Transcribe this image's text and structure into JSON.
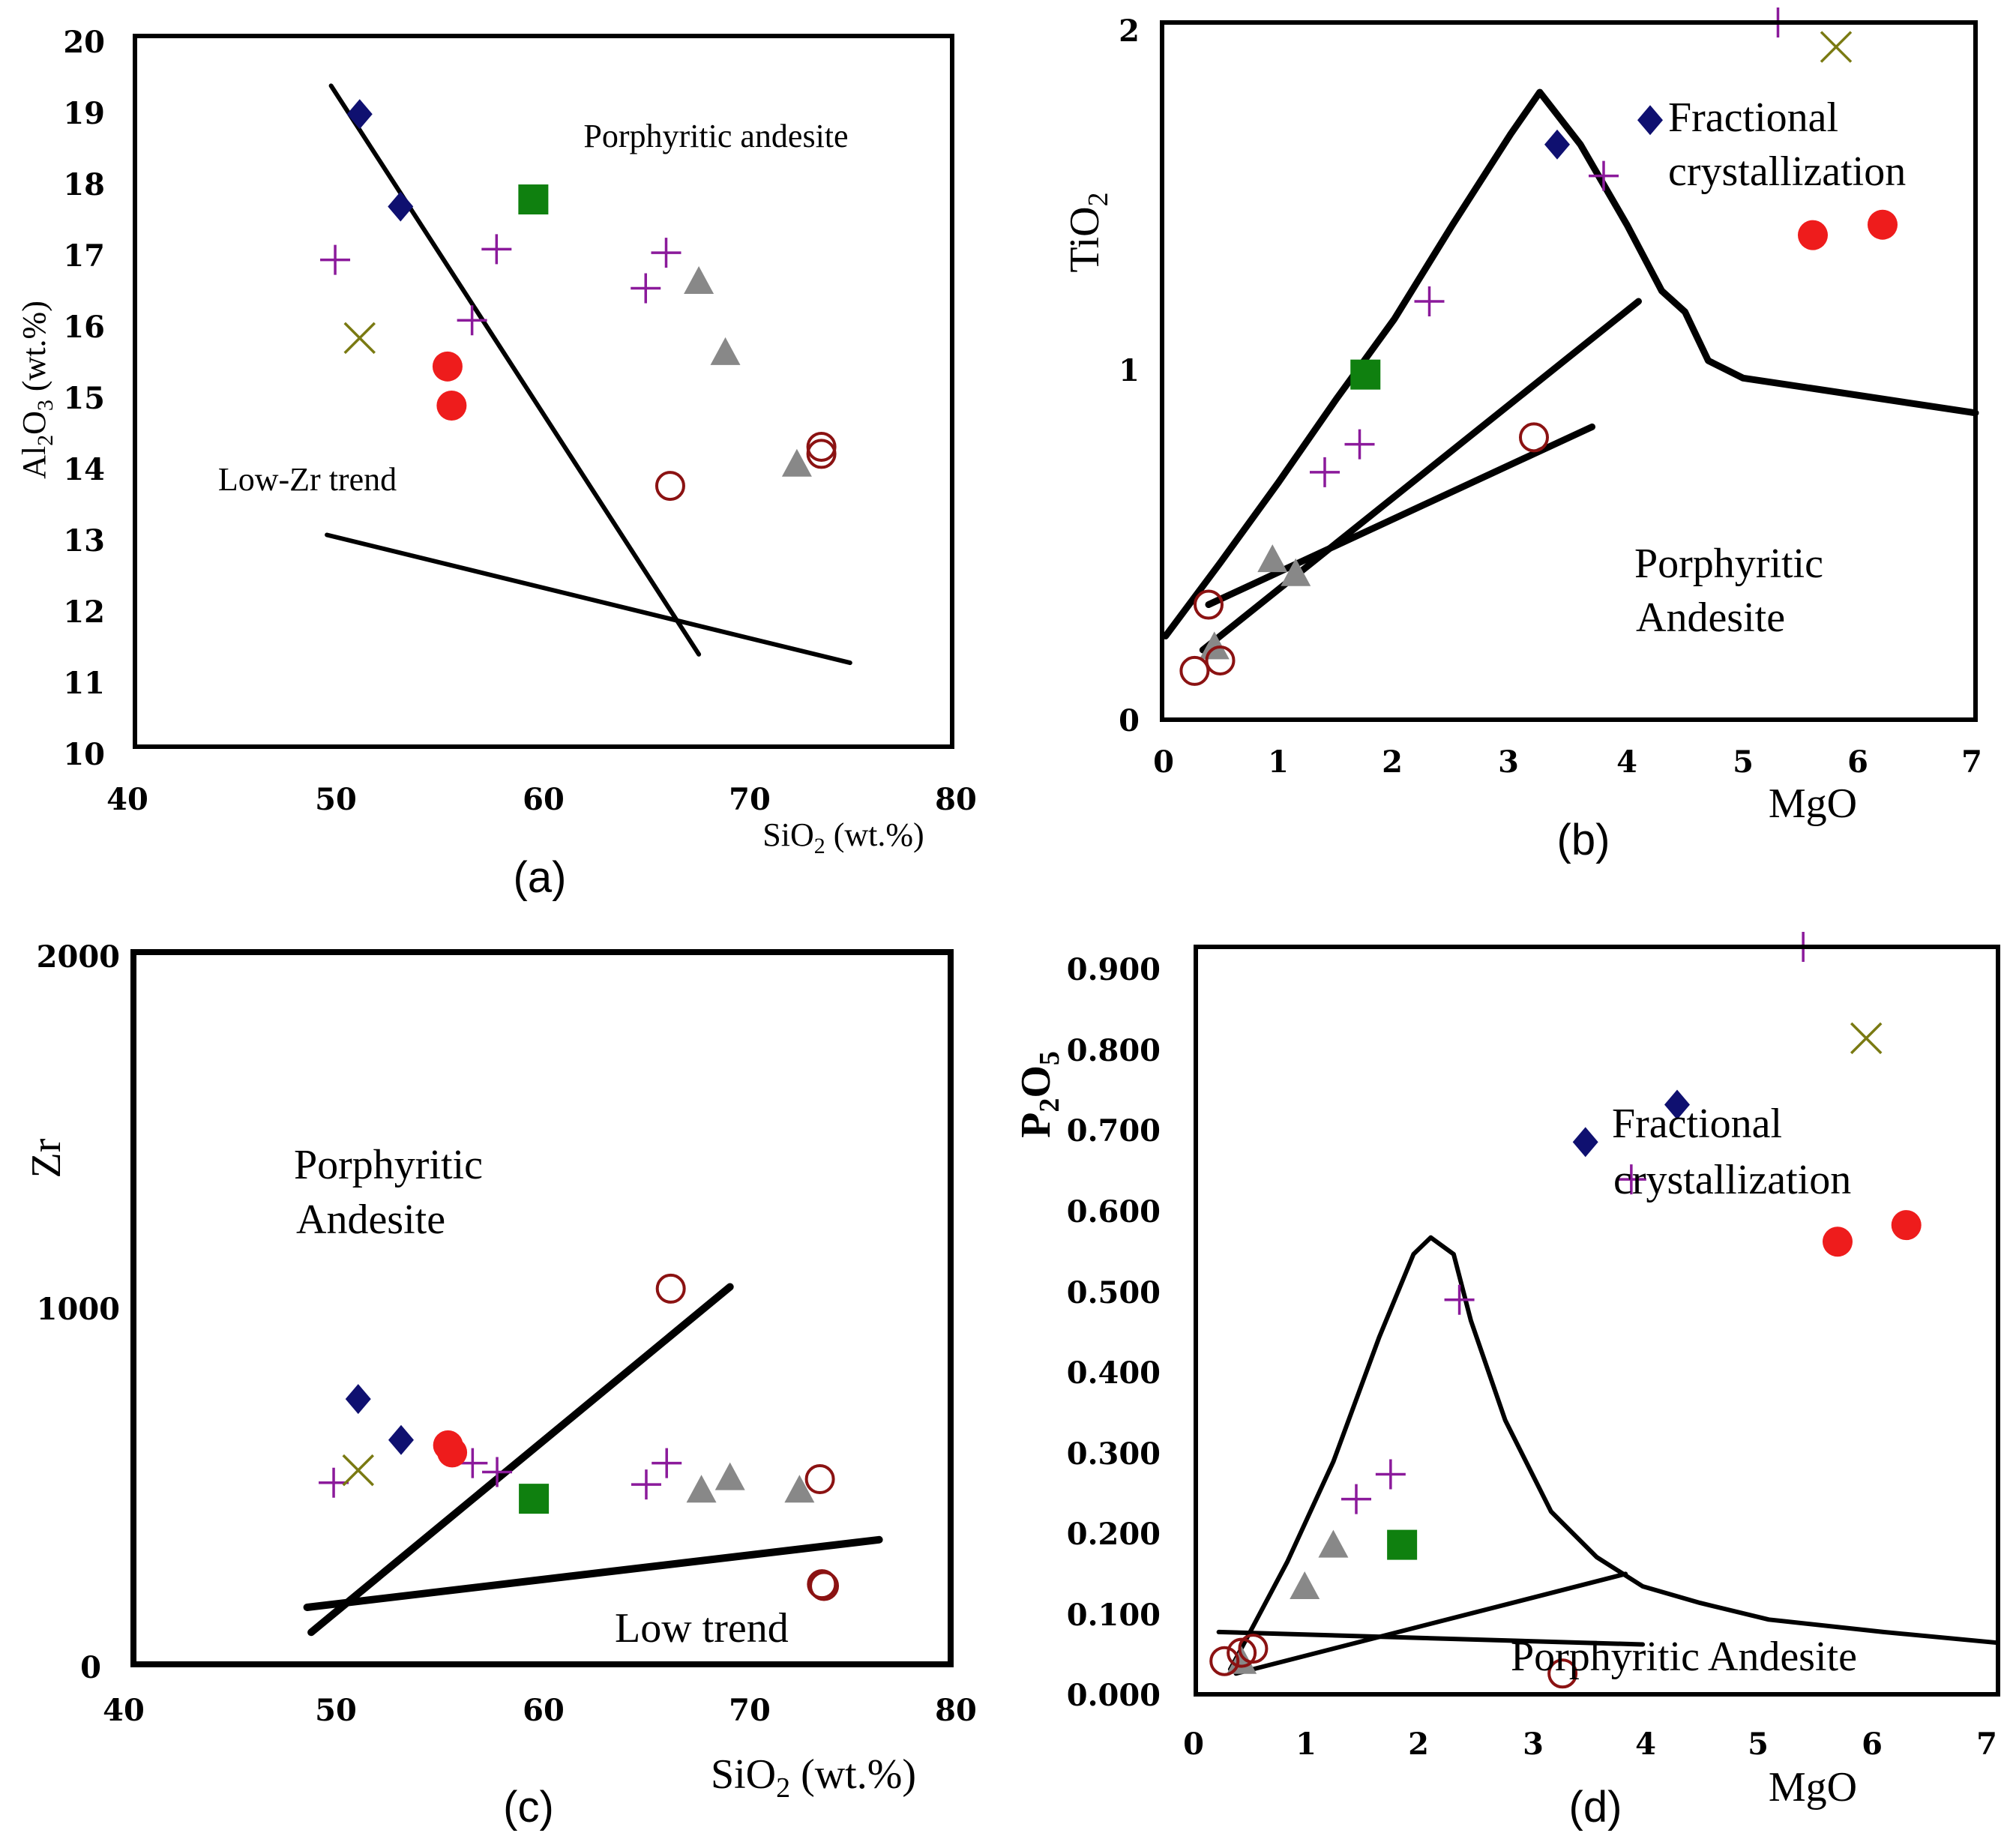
{
  "colors": {
    "diamond": "#0f1070",
    "plus": "#8b1a9b",
    "cross": "#7a7a12",
    "square": "#0f800f",
    "triangle": "#888888",
    "filled_circle": "#ee1c1c",
    "open_circle": "#8b1212"
  },
  "chart_data": [
    {
      "type": "scatter",
      "caption": "(a)",
      "ylabel": "Al2O3 (wt.%)",
      "xlabel": "SiO2 (wt.%)",
      "xlim": [
        40,
        80
      ],
      "ylim": [
        10,
        20
      ],
      "x_ticks": [
        "40",
        "50",
        "60",
        "70",
        "80"
      ],
      "y_ticks": [
        "10",
        "11",
        "12",
        "13",
        "14",
        "15",
        "16",
        "17",
        "18",
        "19",
        "20"
      ],
      "annotations": [
        "Porphyritic andesite",
        "Low-Zr trend"
      ],
      "lines": [
        {
          "points": [
            [
              49.6,
              19.3
            ],
            [
              67.6,
              11.3
            ]
          ]
        },
        {
          "points": [
            [
              49.4,
              12.98
            ],
            [
              75.0,
              11.18
            ]
          ]
        }
      ],
      "series": [
        {
          "marker": "diamond",
          "points": [
            [
              51.0,
              18.9
            ],
            [
              53.0,
              17.6
            ]
          ]
        },
        {
          "marker": "plus",
          "points": [
            [
              49.8,
              16.85
            ],
            [
              57.7,
              17.0
            ],
            [
              56.5,
              16.0
            ],
            [
              65.0,
              16.45
            ],
            [
              66.0,
              16.95
            ]
          ]
        },
        {
          "marker": "cross",
          "points": [
            [
              51.0,
              15.75
            ]
          ]
        },
        {
          "marker": "square",
          "points": [
            [
              59.5,
              17.7
            ]
          ]
        },
        {
          "marker": "filled_circle",
          "points": [
            [
              55.3,
              15.35
            ],
            [
              55.5,
              14.8
            ]
          ]
        },
        {
          "marker": "triangle",
          "points": [
            [
              67.6,
              16.55
            ],
            [
              68.9,
              15.55
            ],
            [
              72.4,
              13.98
            ]
          ]
        },
        {
          "marker": "open_circle",
          "points": [
            [
              66.2,
              13.67
            ],
            [
              73.6,
              14.22
            ],
            [
              73.6,
              14.12
            ]
          ]
        }
      ]
    },
    {
      "type": "scatter",
      "caption": "(b)",
      "ylabel": "TiO2",
      "xlabel": "MgO",
      "xlim": [
        0,
        7
      ],
      "ylim": [
        0,
        2
      ],
      "x_ticks": [
        "0",
        "1",
        "2",
        "3",
        "4",
        "5",
        "6",
        "7"
      ],
      "y_ticks": [
        "0",
        "1",
        "2"
      ],
      "annotations": [
        "Fractional",
        "crystallization",
        "Porphyritic",
        "Andesite"
      ],
      "lines": [
        {
          "points": [
            [
              0.03,
              0.24
            ],
            [
              0.5,
              0.45
            ],
            [
              1.0,
              0.68
            ],
            [
              1.5,
              0.92
            ],
            [
              2.0,
              1.15
            ],
            [
              2.5,
              1.42
            ],
            [
              3.0,
              1.68
            ],
            [
              3.25,
              1.8
            ],
            [
              3.6,
              1.65
            ],
            [
              4.0,
              1.42
            ],
            [
              4.3,
              1.23
            ],
            [
              4.5,
              1.17
            ],
            [
              4.7,
              1.03
            ],
            [
              5.0,
              0.98
            ],
            [
              6.0,
              0.93
            ],
            [
              7.0,
              0.88
            ]
          ]
        },
        {
          "points": [
            [
              0.35,
              0.2
            ],
            [
              4.1,
              1.2
            ]
          ]
        },
        {
          "points": [
            [
              0.4,
              0.33
            ],
            [
              3.7,
              0.84
            ]
          ]
        }
      ],
      "series": [
        {
          "marker": "diamond",
          "points": [
            [
              3.4,
              1.65
            ],
            [
              4.2,
              1.72
            ]
          ]
        },
        {
          "marker": "plus",
          "points": [
            [
              5.3,
              2.0
            ],
            [
              3.8,
              1.56
            ],
            [
              2.3,
              1.2
            ],
            [
              1.4,
              0.71
            ],
            [
              1.7,
              0.79
            ]
          ]
        },
        {
          "marker": "cross",
          "points": [
            [
              5.8,
              1.93
            ]
          ]
        },
        {
          "marker": "square",
          "points": [
            [
              1.75,
              0.99
            ]
          ]
        },
        {
          "marker": "filled_circle",
          "points": [
            [
              5.6,
              1.39
            ],
            [
              6.2,
              1.42
            ]
          ]
        },
        {
          "marker": "triangle",
          "points": [
            [
              0.95,
              0.46
            ],
            [
              1.15,
              0.42
            ],
            [
              0.45,
              0.21
            ]
          ]
        },
        {
          "marker": "open_circle",
          "points": [
            [
              3.2,
              0.81
            ],
            [
              0.4,
              0.33
            ],
            [
              0.28,
              0.14
            ],
            [
              0.5,
              0.17
            ]
          ]
        }
      ]
    },
    {
      "type": "scatter",
      "caption": "(c)",
      "ylabel": "Zr",
      "xlabel": "SiO2 (wt.%)",
      "xlim": [
        40,
        80
      ],
      "ylim": [
        0,
        2000
      ],
      "x_ticks": [
        "40",
        "50",
        "60",
        "70",
        "80"
      ],
      "y_ticks": [
        "0",
        "1000",
        "2000"
      ],
      "annotations": [
        "Porphyritic",
        "Andesite",
        "Low trend"
      ],
      "lines": [
        {
          "points": [
            [
              48.7,
              90
            ],
            [
              69.2,
              1060
            ]
          ]
        },
        {
          "points": [
            [
              48.5,
              160
            ],
            [
              76.5,
              350
            ]
          ]
        }
      ],
      "series": [
        {
          "marker": "diamond",
          "points": [
            [
              51.0,
              745
            ],
            [
              53.1,
              630
            ]
          ]
        },
        {
          "marker": "plus",
          "points": [
            [
              49.8,
              510
            ],
            [
              56.6,
              565
            ],
            [
              57.8,
              540
            ],
            [
              65.1,
              505
            ],
            [
              66.1,
              565
            ]
          ]
        },
        {
          "marker": "cross",
          "points": [
            [
              51.0,
              545
            ]
          ]
        },
        {
          "marker": "square",
          "points": [
            [
              59.6,
              465
            ]
          ]
        },
        {
          "marker": "filled_circle",
          "points": [
            [
              55.4,
              615
            ],
            [
              55.6,
              595
            ]
          ]
        },
        {
          "marker": "triangle",
          "points": [
            [
              67.8,
              490
            ],
            [
              69.2,
              525
            ],
            [
              72.6,
              490
            ]
          ]
        },
        {
          "marker": "open_circle",
          "points": [
            [
              66.3,
              1055
            ],
            [
              73.6,
              520
            ],
            [
              73.7,
              225
            ],
            [
              73.8,
              220
            ]
          ]
        }
      ]
    },
    {
      "type": "scatter",
      "caption": "(d)",
      "ylabel": "P2O5",
      "xlabel": "MgO",
      "xlim": [
        0,
        7
      ],
      "ylim": [
        0,
        0.9
      ],
      "x_ticks": [
        "0",
        "1",
        "2",
        "3",
        "4",
        "5",
        "6",
        "7"
      ],
      "y_ticks": [
        "0.000",
        "0.100",
        "0.200",
        "0.300",
        "0.400",
        "0.500",
        "0.600",
        "0.700",
        "0.800",
        "0.900"
      ],
      "annotations": [
        "Fractional",
        "crystallization",
        "Porphyritic Andesite"
      ],
      "lines": [
        {
          "points": [
            [
              0.3,
              0.03
            ],
            [
              0.8,
              0.16
            ],
            [
              1.2,
              0.28
            ],
            [
              1.6,
              0.43
            ],
            [
              1.9,
              0.53
            ],
            [
              2.05,
              0.55
            ],
            [
              2.25,
              0.53
            ],
            [
              2.4,
              0.45
            ],
            [
              2.7,
              0.33
            ],
            [
              3.1,
              0.22
            ],
            [
              3.5,
              0.165
            ],
            [
              3.9,
              0.13
            ],
            [
              4.4,
              0.11
            ],
            [
              5.0,
              0.09
            ],
            [
              6.0,
              0.075
            ],
            [
              7.0,
              0.062
            ]
          ]
        },
        {
          "points": [
            [
              0.35,
              0.025
            ],
            [
              3.75,
              0.145
            ]
          ]
        },
        {
          "points": [
            [
              0.2,
              0.075
            ],
            [
              3.9,
              0.06
            ]
          ]
        }
      ],
      "series": [
        {
          "marker": "diamond",
          "points": [
            [
              3.4,
              0.665
            ],
            [
              4.2,
              0.71
            ]
          ]
        },
        {
          "marker": "plus",
          "points": [
            [
              5.3,
              0.9
            ],
            [
              3.8,
              0.62
            ],
            [
              2.3,
              0.475
            ],
            [
              1.4,
              0.235
            ],
            [
              1.7,
              0.265
            ]
          ]
        },
        {
          "marker": "cross",
          "points": [
            [
              5.85,
              0.79
            ]
          ]
        },
        {
          "marker": "square",
          "points": [
            [
              1.8,
              0.18
            ]
          ]
        },
        {
          "marker": "filled_circle",
          "points": [
            [
              5.6,
              0.545
            ],
            [
              6.2,
              0.565
            ]
          ]
        },
        {
          "marker": "triangle",
          "points": [
            [
              0.95,
              0.13
            ],
            [
              1.2,
              0.18
            ],
            [
              0.4,
              0.04
            ]
          ]
        },
        {
          "marker": "open_circle",
          "points": [
            [
              3.2,
              0.025
            ],
            [
              0.25,
              0.04
            ],
            [
              0.4,
              0.05
            ],
            [
              0.5,
              0.055
            ]
          ]
        }
      ]
    }
  ]
}
